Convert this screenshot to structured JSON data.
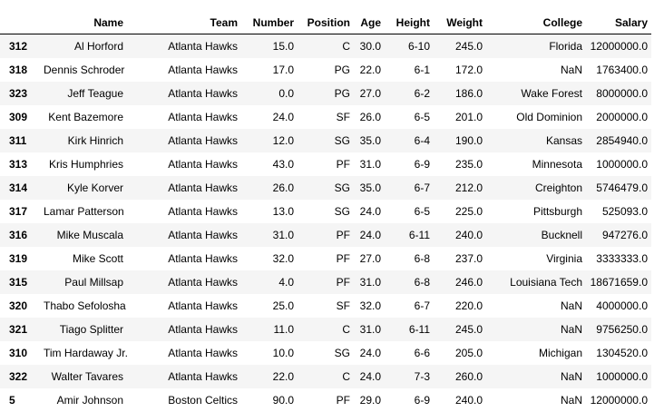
{
  "table": {
    "columns": [
      "",
      "Name",
      "Team",
      "Number",
      "Position",
      "Age",
      "Height",
      "Weight",
      "College",
      "Salary"
    ],
    "rows": [
      [
        "312",
        "Al Horford",
        "Atlanta Hawks",
        "15.0",
        "C",
        "30.0",
        "6-10",
        "245.0",
        "Florida",
        "12000000.0"
      ],
      [
        "318",
        "Dennis Schroder",
        "Atlanta Hawks",
        "17.0",
        "PG",
        "22.0",
        "6-1",
        "172.0",
        "NaN",
        "1763400.0"
      ],
      [
        "323",
        "Jeff Teague",
        "Atlanta Hawks",
        "0.0",
        "PG",
        "27.0",
        "6-2",
        "186.0",
        "Wake Forest",
        "8000000.0"
      ],
      [
        "309",
        "Kent Bazemore",
        "Atlanta Hawks",
        "24.0",
        "SF",
        "26.0",
        "6-5",
        "201.0",
        "Old Dominion",
        "2000000.0"
      ],
      [
        "311",
        "Kirk Hinrich",
        "Atlanta Hawks",
        "12.0",
        "SG",
        "35.0",
        "6-4",
        "190.0",
        "Kansas",
        "2854940.0"
      ],
      [
        "313",
        "Kris Humphries",
        "Atlanta Hawks",
        "43.0",
        "PF",
        "31.0",
        "6-9",
        "235.0",
        "Minnesota",
        "1000000.0"
      ],
      [
        "314",
        "Kyle Korver",
        "Atlanta Hawks",
        "26.0",
        "SG",
        "35.0",
        "6-7",
        "212.0",
        "Creighton",
        "5746479.0"
      ],
      [
        "317",
        "Lamar Patterson",
        "Atlanta Hawks",
        "13.0",
        "SG",
        "24.0",
        "6-5",
        "225.0",
        "Pittsburgh",
        "525093.0"
      ],
      [
        "316",
        "Mike Muscala",
        "Atlanta Hawks",
        "31.0",
        "PF",
        "24.0",
        "6-11",
        "240.0",
        "Bucknell",
        "947276.0"
      ],
      [
        "319",
        "Mike Scott",
        "Atlanta Hawks",
        "32.0",
        "PF",
        "27.0",
        "6-8",
        "237.0",
        "Virginia",
        "3333333.0"
      ],
      [
        "315",
        "Paul Millsap",
        "Atlanta Hawks",
        "4.0",
        "PF",
        "31.0",
        "6-8",
        "246.0",
        "Louisiana Tech",
        "18671659.0"
      ],
      [
        "320",
        "Thabo Sefolosha",
        "Atlanta Hawks",
        "25.0",
        "SF",
        "32.0",
        "6-7",
        "220.0",
        "NaN",
        "4000000.0"
      ],
      [
        "321",
        "Tiago Splitter",
        "Atlanta Hawks",
        "11.0",
        "C",
        "31.0",
        "6-11",
        "245.0",
        "NaN",
        "9756250.0"
      ],
      [
        "310",
        "Tim Hardaway Jr.",
        "Atlanta Hawks",
        "10.0",
        "SG",
        "24.0",
        "6-6",
        "205.0",
        "Michigan",
        "1304520.0"
      ],
      [
        "322",
        "Walter Tavares",
        "Atlanta Hawks",
        "22.0",
        "C",
        "24.0",
        "7-3",
        "260.0",
        "NaN",
        "1000000.0"
      ],
      [
        "5",
        "Amir Johnson",
        "Boston Celtics",
        "90.0",
        "PF",
        "29.0",
        "6-9",
        "240.0",
        "NaN",
        "12000000.0"
      ]
    ]
  }
}
